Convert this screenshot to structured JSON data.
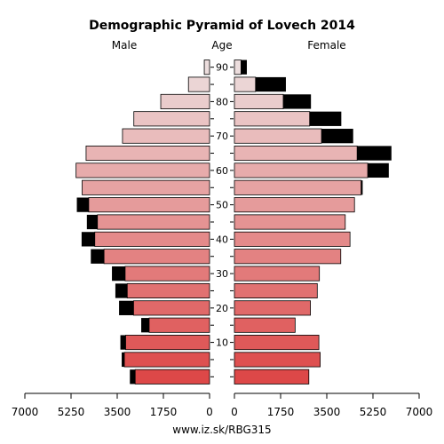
{
  "chart_data": {
    "type": "bar",
    "title": "Demographic Pyramid of Lovech 2014",
    "male_label": "Male",
    "age_label": "Age",
    "female_label": "Female",
    "footer": "www.iz.sk/RBG315",
    "age_ticks": [
      "10",
      "20",
      "30",
      "40",
      "50",
      "60",
      "70",
      "80",
      "90"
    ],
    "x_ticks_left": [
      "7000",
      "5250",
      "3500",
      "1750",
      "0"
    ],
    "x_ticks_right": [
      "0",
      "1750",
      "3500",
      "5250",
      "7000"
    ],
    "xlim": [
      0,
      7000
    ],
    "age_groups": [
      "0-4",
      "5-9",
      "10-14",
      "15-19",
      "20-24",
      "25-29",
      "30-34",
      "35-39",
      "40-44",
      "45-49",
      "50-54",
      "55-59",
      "60-64",
      "65-69",
      "70-74",
      "75-79",
      "80-84",
      "85-89",
      "90+"
    ],
    "series": [
      {
        "name": "Male",
        "values": [
          2820,
          3230,
          3180,
          2290,
          2880,
          3120,
          3200,
          4000,
          4350,
          4250,
          4580,
          4830,
          5060,
          4680,
          3300,
          2870,
          1850,
          800,
          200
        ],
        "excess": [
          200,
          100,
          200,
          300,
          550,
          450,
          500,
          500,
          500,
          400,
          450,
          0,
          0,
          0,
          0,
          0,
          0,
          0,
          0
        ]
      },
      {
        "name": "Female",
        "values": [
          2820,
          3250,
          3200,
          2300,
          2880,
          3140,
          3220,
          4030,
          4380,
          4200,
          4550,
          4800,
          5050,
          4650,
          3300,
          2850,
          1850,
          800,
          250
        ],
        "excess": [
          0,
          0,
          0,
          0,
          0,
          0,
          0,
          0,
          0,
          0,
          0,
          60,
          800,
          1300,
          1200,
          1200,
          1050,
          1150,
          220
        ]
      }
    ],
    "colors": {
      "young": "#dd4848",
      "old": "#ecdddd",
      "excess": "#000000"
    }
  }
}
